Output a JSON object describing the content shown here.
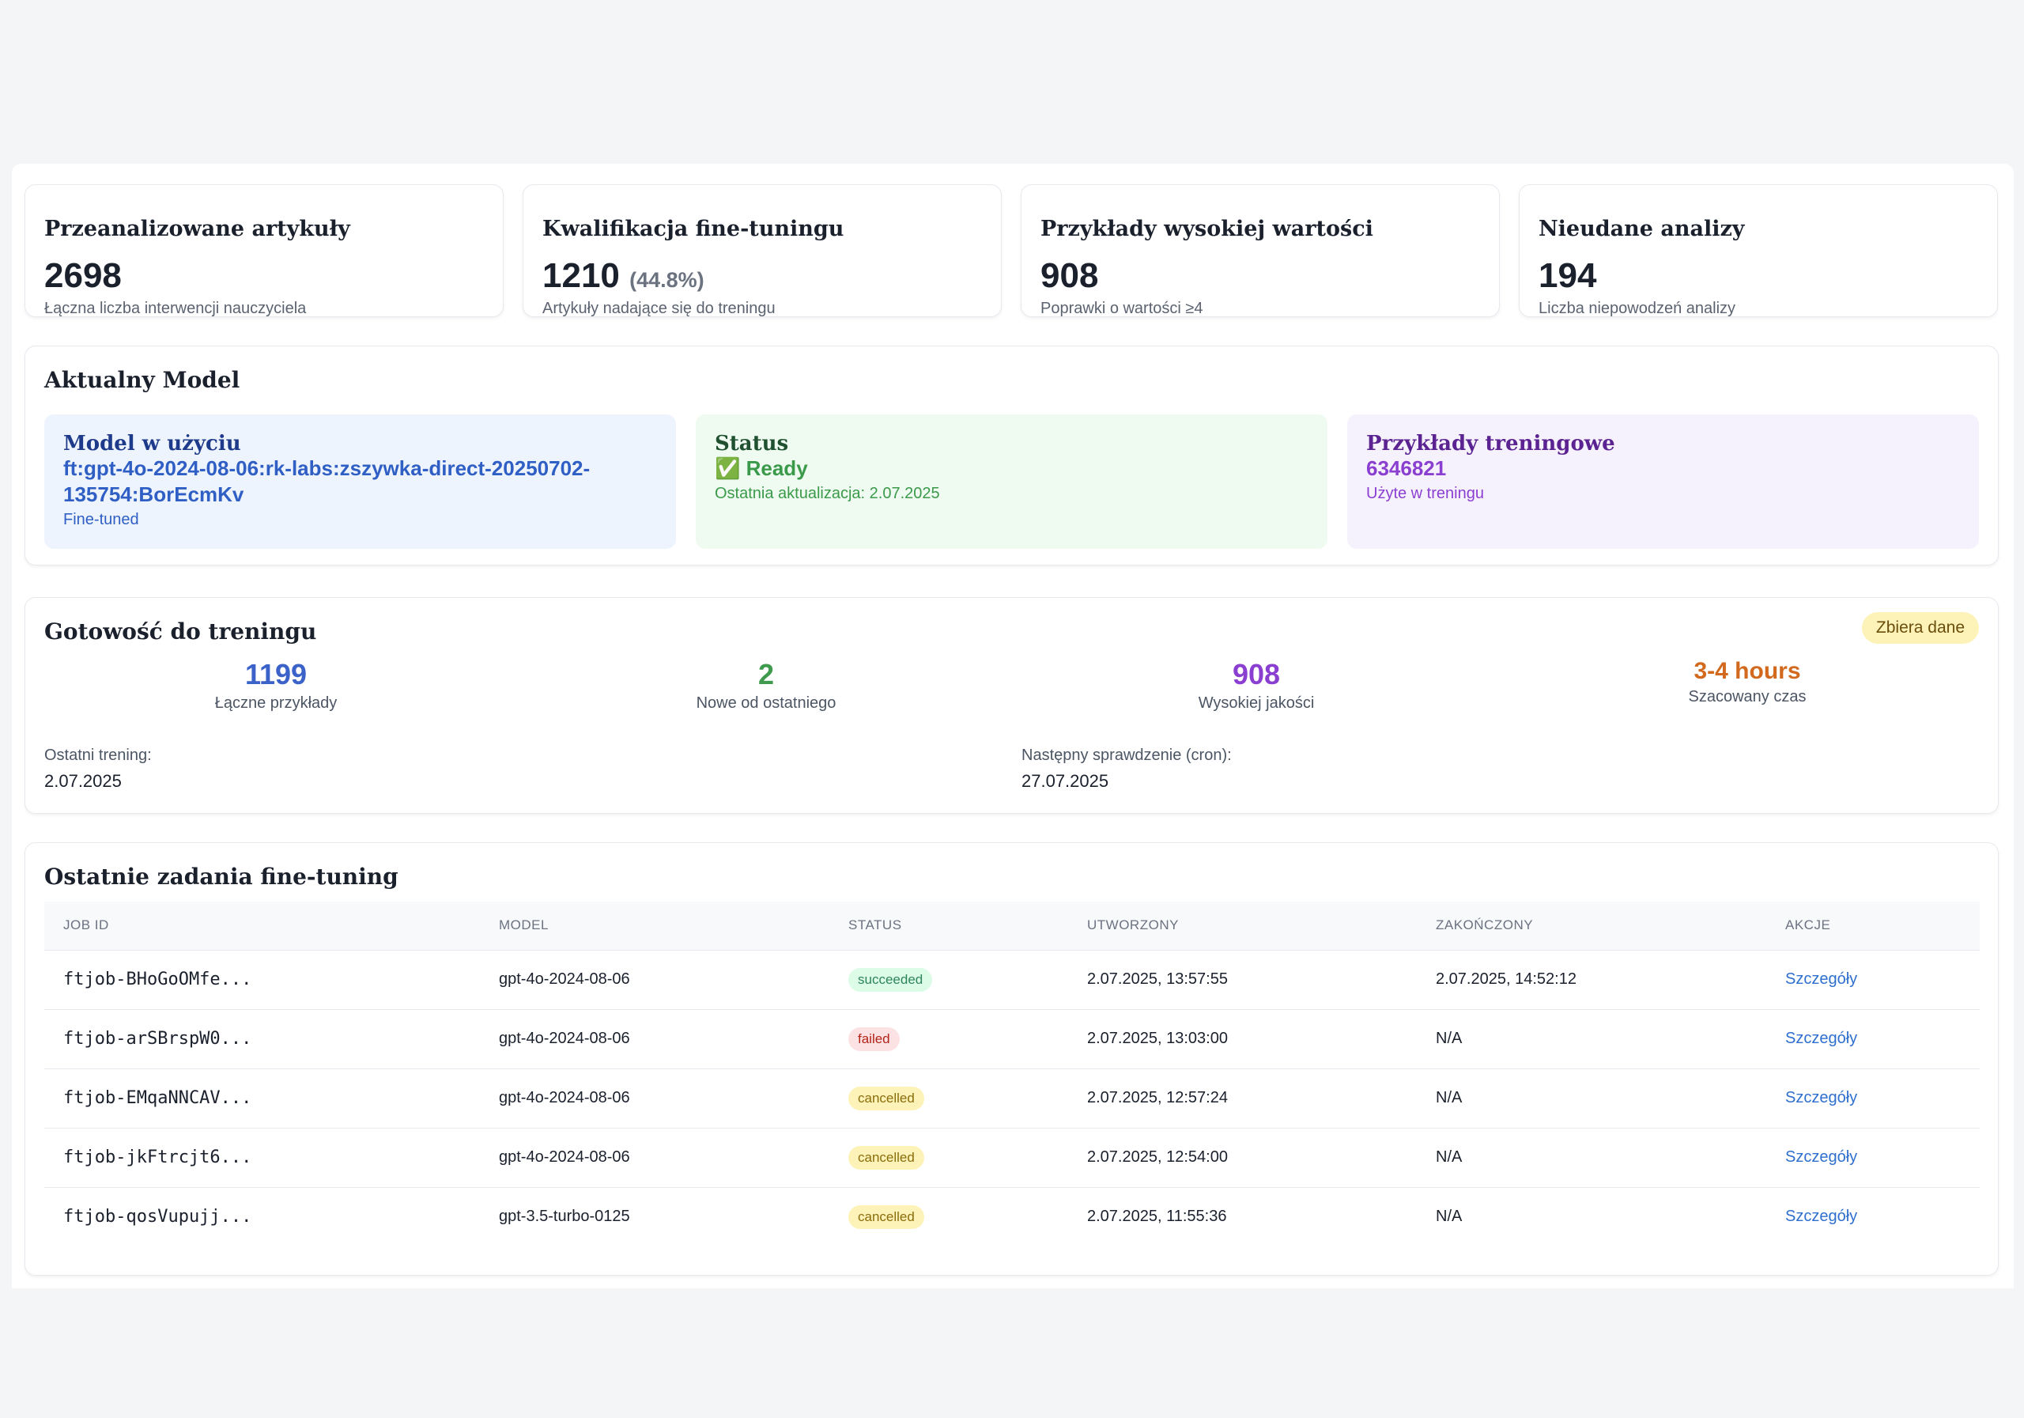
{
  "stats": [
    {
      "title": "Przeanalizowane artykuły",
      "value": "2698",
      "pct": "",
      "desc": "Łączna liczba interwencji nauczyciela"
    },
    {
      "title": "Kwalifikacja fine-tuningu",
      "value": "1210",
      "pct": "(44.8%)",
      "desc": "Artykuły nadające się do treningu"
    },
    {
      "title": "Przykłady wysokiej wartości",
      "value": "908",
      "pct": "",
      "desc": "Poprawki o wartości ≥4"
    },
    {
      "title": "Nieudane analizy",
      "value": "194",
      "pct": "",
      "desc": "Liczba niepowodzeń analizy"
    }
  ],
  "current_model": {
    "title": "Aktualny Model",
    "model_label": "Model w użyciu",
    "model_name_line1": "ft:gpt-4o-2024-08-06:rk-labs:zszywka-direct-20250702-",
    "model_name_line2": "135754:BorEcmKv",
    "model_type": "Fine-tuned",
    "status_label": "Status",
    "status_icon": "✅",
    "status_value": "Ready",
    "status_updated": "Ostatnia aktualizacja: 2.07.2025",
    "examples_label": "Przykłady treningowe",
    "examples_value": "6346821",
    "examples_desc": "Użyte w treningu",
    "colors": {
      "blue": "#2f5fc4",
      "green": "#3a9a4a",
      "purple": "#8a3fd1"
    }
  },
  "readiness": {
    "title": "Gotowość do treningu",
    "badge": "Zbiera dane",
    "metrics": [
      {
        "value": "1199",
        "label": "Łączne przykłady",
        "color": "#3a62c9"
      },
      {
        "value": "2",
        "label": "Nowe od ostatniego",
        "color": "#3f9a4e"
      },
      {
        "value": "908",
        "label": "Wysokiej jakości",
        "color": "#8a3fd1"
      },
      {
        "value": "3-4 hours",
        "label": "Szacowany czas",
        "color": "#d2691e"
      }
    ],
    "last_training_label": "Ostatni trening:",
    "last_training_value": "2.07.2025",
    "next_check_label": "Następny sprawdzenie (cron):",
    "next_check_value": "27.07.2025"
  },
  "jobs": {
    "title": "Ostatnie zadania fine-tuning",
    "columns": [
      "JOB ID",
      "MODEL",
      "STATUS",
      "UTWORZONY",
      "ZAKOŃCZONY",
      "AKCJE"
    ],
    "rows": [
      {
        "id": "ftjob-BHoGoOMfe...",
        "model": "gpt-4o-2024-08-06",
        "status": "succeeded",
        "created": "2.07.2025, 13:57:55",
        "finished": "2.07.2025, 14:52:12",
        "action": "Szczegóły"
      },
      {
        "id": "ftjob-arSBrspW0...",
        "model": "gpt-4o-2024-08-06",
        "status": "failed",
        "created": "2.07.2025, 13:03:00",
        "finished": "N/A",
        "action": "Szczegóły"
      },
      {
        "id": "ftjob-EMqaNNCAV...",
        "model": "gpt-4o-2024-08-06",
        "status": "cancelled",
        "created": "2.07.2025, 12:57:24",
        "finished": "N/A",
        "action": "Szczegóły"
      },
      {
        "id": "ftjob-jkFtrcjt6...",
        "model": "gpt-4o-2024-08-06",
        "status": "cancelled",
        "created": "2.07.2025, 12:54:00",
        "finished": "N/A",
        "action": "Szczegóły"
      },
      {
        "id": "ftjob-qosVupujj...",
        "model": "gpt-3.5-turbo-0125",
        "status": "cancelled",
        "created": "2.07.2025, 11:55:36",
        "finished": "N/A",
        "action": "Szczegóły"
      }
    ]
  }
}
